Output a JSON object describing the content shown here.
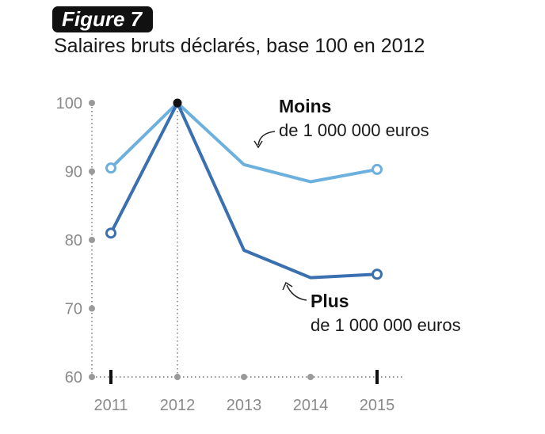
{
  "figure": {
    "badge": "Figure 7",
    "subtitle": "Salaires bruts déclarés, base 100 en 2012"
  },
  "chart_data": {
    "type": "line",
    "x": [
      2011,
      2012,
      2013,
      2014,
      2015
    ],
    "ylim": [
      60,
      100
    ],
    "y_ticks": [
      60,
      70,
      80,
      90,
      100
    ],
    "series": [
      {
        "name": "Moins de 1 000 000 euros",
        "label_bold": "Moins",
        "label_rest": "de 1 000 000 euros",
        "color": "#6cb0de",
        "values": [
          90.5,
          100,
          91,
          88.5,
          90.3
        ]
      },
      {
        "name": "Plus de 1 000 000 euros",
        "label_bold": "Plus",
        "label_rest": "de 1 000 000 euros",
        "color": "#3a6fb0",
        "values": [
          81,
          100,
          78.5,
          74.5,
          75
        ]
      }
    ],
    "base_year": 2012,
    "grid": false
  }
}
